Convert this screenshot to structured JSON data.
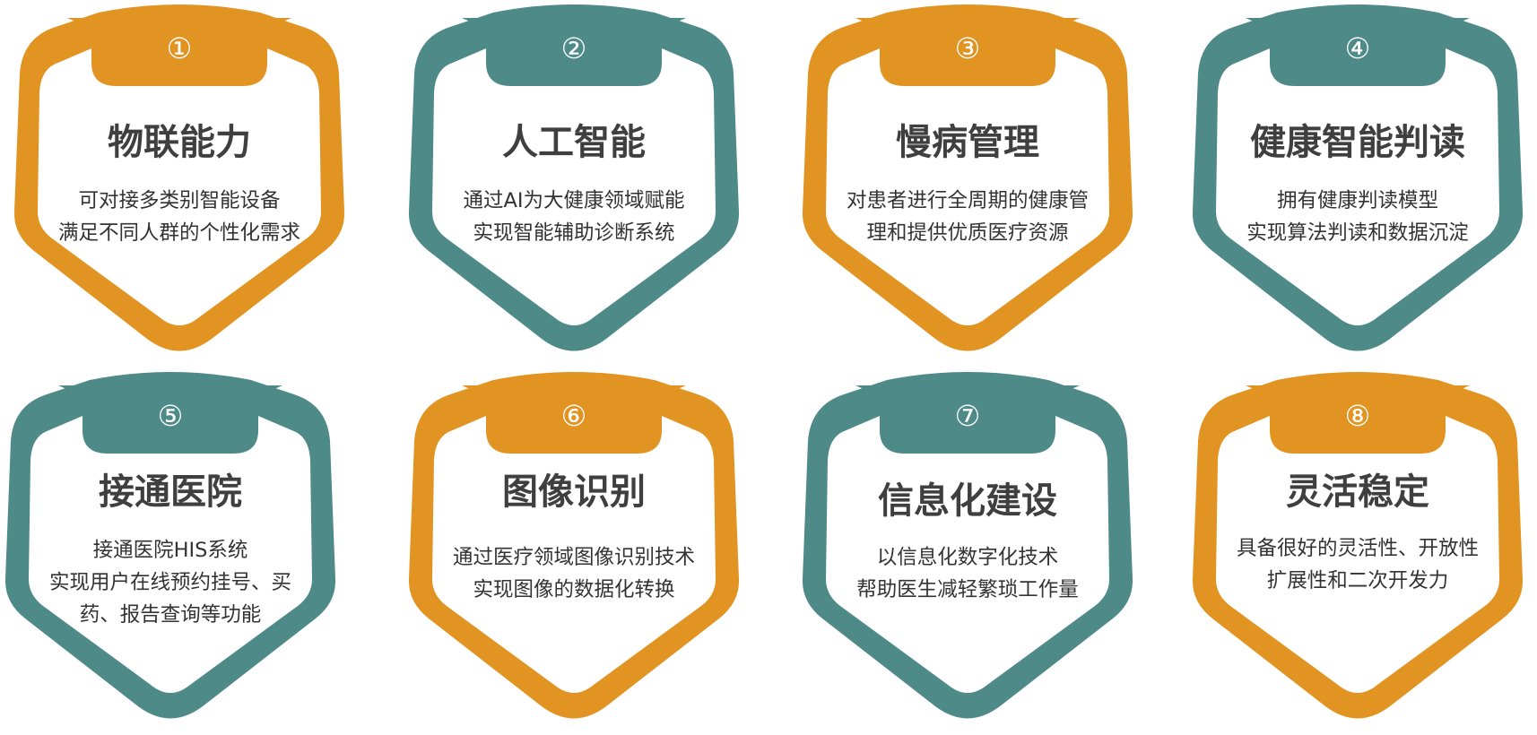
{
  "colors": {
    "orange": "#E29423",
    "teal": "#4E8A88"
  },
  "cards": [
    {
      "num": "①",
      "title": "物联能力",
      "lines": [
        "可对接多类别智能设备",
        "满足不同人群的个性化需求"
      ],
      "color": "orange"
    },
    {
      "num": "②",
      "title": "人工智能",
      "lines": [
        "通过AI为大健康领域赋能",
        "实现智能辅助诊断系统"
      ],
      "color": "teal"
    },
    {
      "num": "③",
      "title": "慢病管理",
      "lines": [
        "对患者进行全周期的健康管",
        "理和提供优质医疗资源"
      ],
      "color": "orange"
    },
    {
      "num": "④",
      "title": "健康智能判读",
      "lines": [
        "拥有健康判读模型",
        "实现算法判读和数据沉淀"
      ],
      "color": "teal"
    },
    {
      "num": "⑤",
      "title": "接通医院",
      "lines": [
        "接通医院HIS系统",
        "实现用户在线预约挂号、买",
        "药、报告查询等功能"
      ],
      "color": "teal"
    },
    {
      "num": "⑥",
      "title": "图像识别",
      "lines": [
        "通过医疗领域图像识别技术",
        "实现图像的数据化转换"
      ],
      "color": "orange"
    },
    {
      "num": "⑦",
      "title": "信息化建设",
      "lines": [
        "以信息化数字化技术",
        "帮助医生减轻繁琐工作量"
      ],
      "color": "teal"
    },
    {
      "num": "⑧",
      "title": "灵活稳定",
      "lines": [
        "具备很好的灵活性、开放性",
        "扩展性和二次开发力"
      ],
      "color": "orange"
    }
  ]
}
